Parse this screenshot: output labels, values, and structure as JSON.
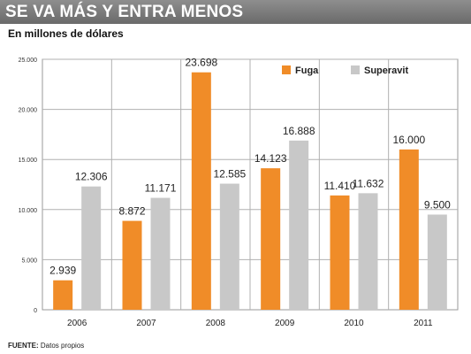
{
  "title": "SE VA MÁS Y ENTRA MENOS",
  "subtitle": "En millones de dólares",
  "source_label": "FUENTE:",
  "source_text": "Datos propios",
  "colors": {
    "fuga": "#f08c28",
    "superavit": "#c8c8c8"
  },
  "chart_data": {
    "type": "bar",
    "categories": [
      "2006",
      "2007",
      "2008",
      "2009",
      "2010",
      "2011"
    ],
    "series": [
      {
        "name": "Fuga",
        "values": [
          2939,
          8872,
          23698,
          14123,
          11410,
          16000
        ],
        "labels": [
          "2.939",
          "8.872",
          "23.698",
          "14.123",
          "11.410",
          "16.000"
        ]
      },
      {
        "name": "Superavit",
        "values": [
          12306,
          11171,
          12585,
          16888,
          11632,
          9500
        ],
        "labels": [
          "12.306",
          "11.171",
          "12.585",
          "16.888",
          "11.632",
          "9.500"
        ]
      }
    ],
    "yticks": [
      "0",
      "5.000",
      "10.000",
      "15.000",
      "20.000",
      "25.000"
    ],
    "ylim": [
      0,
      25000
    ],
    "grid": true,
    "legend": "top-right"
  }
}
